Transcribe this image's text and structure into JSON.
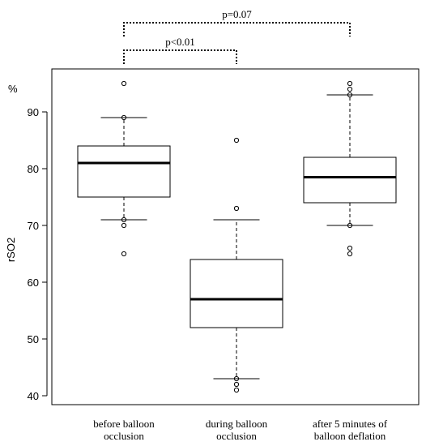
{
  "chart_data": {
    "type": "box",
    "title": "",
    "xlabel": "",
    "ylabel": "rSO2",
    "unit_label": "%",
    "ylim": [
      39,
      99
    ],
    "yticks": [
      40,
      50,
      60,
      70,
      80,
      90
    ],
    "grid": false,
    "categories": [
      [
        "before balloon",
        "occlusion"
      ],
      [
        "during balloon",
        "occlusion"
      ],
      [
        "after 5 minutes of",
        "balloon deflation"
      ]
    ],
    "boxes": [
      {
        "whisker_low": 71,
        "q1": 75,
        "median": 81,
        "q3": 84,
        "whisker_high": 89,
        "outliers": [
          95,
          89,
          71,
          70,
          65
        ]
      },
      {
        "whisker_low": 43,
        "q1": 52,
        "median": 57,
        "q3": 64,
        "whisker_high": 71,
        "outliers": [
          85,
          73,
          43,
          42,
          41
        ]
      },
      {
        "whisker_low": 70,
        "q1": 74,
        "median": 78.5,
        "q3": 82,
        "whisker_high": 93,
        "outliers": [
          95,
          94,
          93,
          70,
          66,
          65
        ]
      }
    ],
    "significance": [
      {
        "from": 0,
        "to": 1,
        "label": "p<0.01",
        "level": 1
      },
      {
        "from": 0,
        "to": 2,
        "label": "p=0.07",
        "level": 2
      }
    ]
  }
}
